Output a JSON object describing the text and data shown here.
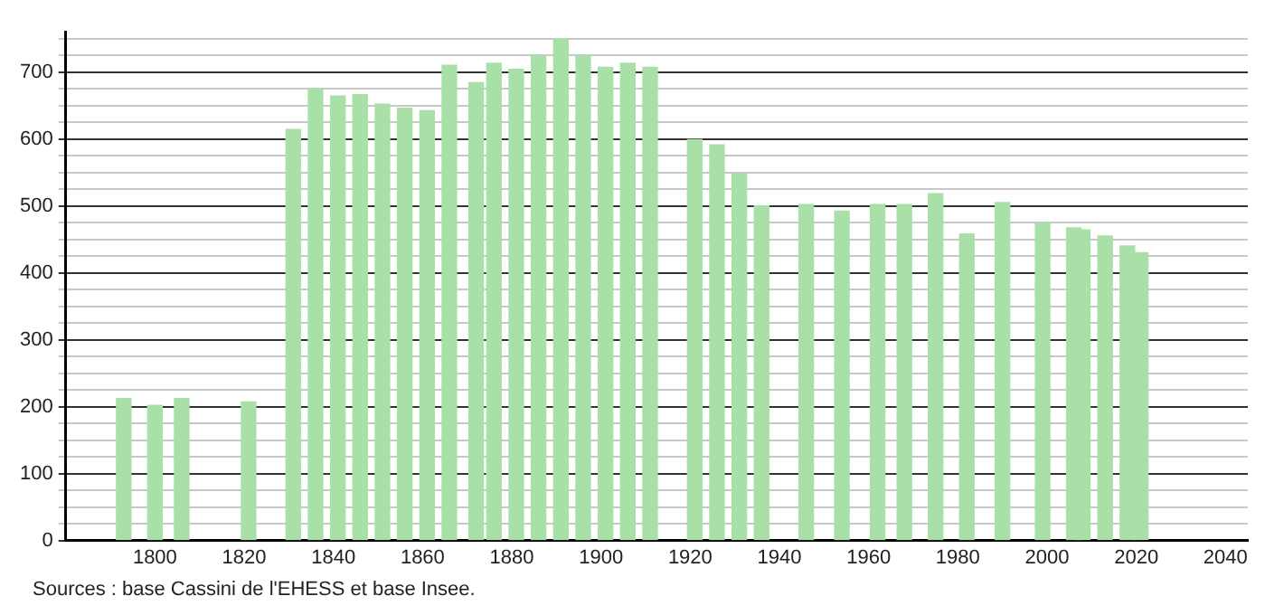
{
  "chart_data": {
    "type": "bar",
    "x": [
      1793,
      1800,
      1806,
      1821,
      1831,
      1836,
      1841,
      1846,
      1851,
      1856,
      1861,
      1866,
      1872,
      1876,
      1881,
      1886,
      1891,
      1896,
      1901,
      1906,
      1911,
      1921,
      1926,
      1931,
      1936,
      1946,
      1954,
      1962,
      1968,
      1975,
      1982,
      1990,
      1999,
      2006,
      2008,
      2013,
      2018,
      2021
    ],
    "values": [
      212,
      202,
      212,
      207,
      614,
      675,
      664,
      666,
      652,
      646,
      642,
      710,
      684,
      713,
      704,
      724,
      750,
      724,
      707,
      713,
      707,
      599,
      591,
      548,
      500,
      502,
      492,
      502,
      502,
      518,
      458,
      505,
      474,
      467,
      464,
      455,
      440,
      430
    ],
    "color": "#a8e0a8",
    "xlim": [
      1780,
      2045
    ],
    "xticks": [
      1800,
      1820,
      1840,
      1860,
      1880,
      1900,
      1920,
      1940,
      1960,
      1980,
      2000,
      2020,
      2040
    ],
    "ylim": [
      0,
      760
    ],
    "yticks": [
      0,
      {
        "value": 25,
        "label": null
      },
      {
        "value": 50,
        "label": null
      },
      {
        "value": 75,
        "label": null
      },
      100,
      {
        "value": 125,
        "label": null
      },
      {
        "value": 150,
        "label": null
      },
      {
        "value": 175,
        "label": null
      },
      200,
      {
        "value": 225,
        "label": null
      },
      {
        "value": 250,
        "label": null
      },
      {
        "value": 275,
        "label": null
      },
      300,
      {
        "value": 325,
        "label": null
      },
      {
        "value": 350,
        "label": null
      },
      {
        "value": 375,
        "label": null
      },
      400,
      {
        "value": 425,
        "label": null
      },
      {
        "value": 450,
        "label": null
      },
      {
        "value": 475,
        "label": null
      },
      500,
      {
        "value": 525,
        "label": null
      },
      {
        "value": 550,
        "label": null
      },
      {
        "value": 575,
        "label": null
      },
      600,
      {
        "value": 625,
        "label": null
      },
      {
        "value": 650,
        "label": null
      },
      {
        "value": 675,
        "label": null
      },
      700,
      {
        "value": 725,
        "label": null
      },
      {
        "value": 750,
        "label": null
      }
    ],
    "grid": "y",
    "annotations": [
      "Sources : base Cassini de l'EHESS et base Insee."
    ]
  }
}
